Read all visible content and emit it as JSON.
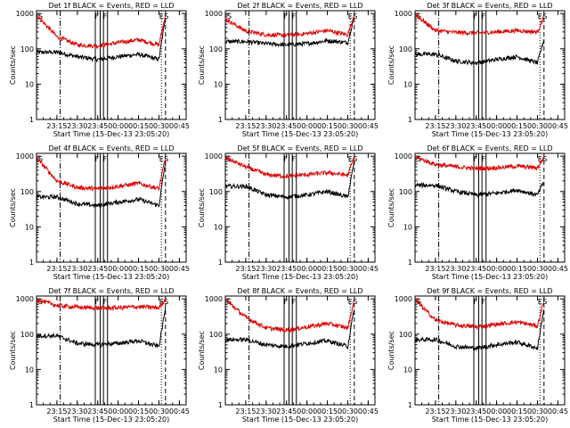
{
  "figure": {
    "xtick_labels": [
      "23:15",
      "23:30",
      "23:45",
      "00:00",
      "00:15",
      "00:30",
      "00:45"
    ],
    "x_tick_hours": [
      23.25,
      23.5,
      23.75,
      24.0,
      24.25,
      24.5,
      24.75
    ],
    "x_range_hours": [
      23.0,
      24.833
    ],
    "ytick_labels": [
      "1",
      "10",
      "100",
      "1000"
    ],
    "ylabel": "Counts/sec",
    "xlabel": "Start Time (15-Dec-13 23:05:20)",
    "ylog": true,
    "y_range": [
      1,
      1200
    ],
    "colors": {
      "events": "#000000",
      "lld": "#dd0000"
    },
    "marker_hours": {
      "dashdot": 23.29,
      "solid": [
        23.72,
        23.78,
        23.82,
        23.87
      ],
      "dotted": 24.53,
      "dashed": 24.58
    },
    "marker_labels": [
      {
        "text": "S",
        "hour": 23.05
      },
      {
        "text": "F",
        "hour": 23.74
      },
      {
        "text": "F",
        "hour": 23.84
      },
      {
        "text": "E",
        "hour": 24.53
      },
      {
        "text": "S",
        "hour": 24.59
      }
    ]
  },
  "chart_data": [
    {
      "type": "line",
      "title": "Det 1f BLACK = Events, RED = LLD",
      "series": [
        {
          "name": "Events",
          "color": "#000000",
          "x": [
            23.0,
            23.25,
            23.5,
            23.75,
            24.0,
            24.25,
            24.5,
            24.583
          ],
          "y": [
            null,
            80,
            60,
            50,
            60,
            70,
            50,
            900
          ]
        },
        {
          "name": "LLD",
          "color": "#dd0000",
          "x": [
            23.0,
            23.25,
            23.5,
            23.75,
            24.0,
            24.25,
            24.5,
            24.583
          ],
          "y": [
            900,
            220,
            130,
            120,
            150,
            180,
            130,
            1000
          ]
        }
      ]
    },
    {
      "type": "line",
      "title": "Det 2f BLACK = Events, RED = LLD",
      "series": [
        {
          "name": "Events",
          "color": "#000000",
          "x": [
            23.0,
            23.25,
            23.5,
            23.75,
            24.0,
            24.25,
            24.5,
            24.583
          ],
          "y": [
            null,
            160,
            140,
            130,
            140,
            170,
            150,
            900
          ]
        },
        {
          "name": "LLD",
          "color": "#dd0000",
          "x": [
            23.0,
            23.25,
            23.5,
            23.75,
            24.0,
            24.25,
            24.5,
            24.583
          ],
          "y": [
            700,
            320,
            250,
            240,
            270,
            330,
            250,
            1000
          ]
        }
      ]
    },
    {
      "type": "line",
      "title": "Det 3f BLACK = Events, RED = LLD",
      "series": [
        {
          "name": "Events",
          "color": "#000000",
          "x": [
            23.0,
            23.25,
            23.5,
            23.75,
            24.0,
            24.25,
            24.5,
            24.583
          ],
          "y": [
            null,
            70,
            45,
            40,
            50,
            60,
            40,
            200
          ]
        },
        {
          "name": "LLD",
          "color": "#dd0000",
          "x": [
            23.0,
            23.25,
            23.5,
            23.75,
            24.0,
            24.25,
            24.5,
            24.583
          ],
          "y": [
            950,
            330,
            290,
            280,
            300,
            330,
            300,
            900
          ]
        }
      ]
    },
    {
      "type": "line",
      "title": "Det 4f BLACK = Events, RED = LLD",
      "series": [
        {
          "name": "Events",
          "color": "#000000",
          "x": [
            23.0,
            23.25,
            23.5,
            23.75,
            24.0,
            24.25,
            24.5,
            24.583
          ],
          "y": [
            null,
            70,
            45,
            40,
            50,
            60,
            40,
            800
          ]
        },
        {
          "name": "LLD",
          "color": "#dd0000",
          "x": [
            23.0,
            23.25,
            23.5,
            23.75,
            24.0,
            24.25,
            24.5,
            24.583
          ],
          "y": [
            900,
            200,
            130,
            120,
            140,
            170,
            120,
            1000
          ]
        }
      ]
    },
    {
      "type": "line",
      "title": "Det 5f BLACK = Events, RED = LLD",
      "series": [
        {
          "name": "Events",
          "color": "#000000",
          "x": [
            23.0,
            23.25,
            23.5,
            23.75,
            24.0,
            24.25,
            24.5,
            24.583
          ],
          "y": [
            null,
            140,
            80,
            70,
            80,
            100,
            70,
            800
          ]
        },
        {
          "name": "LLD",
          "color": "#dd0000",
          "x": [
            23.0,
            23.25,
            23.5,
            23.75,
            24.0,
            24.25,
            24.5,
            24.583
          ],
          "y": [
            900,
            500,
            300,
            270,
            300,
            340,
            290,
            1000
          ]
        }
      ]
    },
    {
      "type": "line",
      "title": "Det 6f BLACK = Events, RED = LLD",
      "series": [
        {
          "name": "Events",
          "color": "#000000",
          "x": [
            23.0,
            23.25,
            23.5,
            23.75,
            24.0,
            24.25,
            24.5,
            24.583
          ],
          "y": [
            null,
            150,
            100,
            80,
            90,
            110,
            80,
            200
          ]
        },
        {
          "name": "LLD",
          "color": "#dd0000",
          "x": [
            23.0,
            23.25,
            23.5,
            23.75,
            24.0,
            24.25,
            24.5,
            24.583
          ],
          "y": [
            950,
            580,
            500,
            450,
            470,
            520,
            470,
            950
          ]
        }
      ]
    },
    {
      "type": "line",
      "title": "Det 7f BLACK = Events, RED = LLD",
      "series": [
        {
          "name": "Events",
          "color": "#000000",
          "x": [
            23.0,
            23.25,
            23.5,
            23.75,
            24.0,
            24.25,
            24.5,
            24.583
          ],
          "y": [
            null,
            90,
            55,
            50,
            55,
            65,
            45,
            600
          ]
        },
        {
          "name": "LLD",
          "color": "#dd0000",
          "x": [
            23.0,
            23.25,
            23.5,
            23.75,
            24.0,
            24.25,
            24.5,
            24.583
          ],
          "y": [
            950,
            650,
            580,
            550,
            560,
            600,
            560,
            1000
          ]
        }
      ]
    },
    {
      "type": "line",
      "title": "Det 8f BLACK = Events, RED = LLD",
      "series": [
        {
          "name": "Events",
          "color": "#000000",
          "x": [
            23.0,
            23.25,
            23.5,
            23.75,
            24.0,
            24.25,
            24.5,
            24.583
          ],
          "y": [
            null,
            70,
            50,
            45,
            55,
            65,
            45,
            600
          ]
        },
        {
          "name": "LLD",
          "color": "#dd0000",
          "x": [
            23.0,
            23.25,
            23.5,
            23.75,
            24.0,
            24.25,
            24.5,
            24.583
          ],
          "y": [
            950,
            300,
            150,
            130,
            160,
            200,
            150,
            1000
          ]
        }
      ]
    },
    {
      "type": "line",
      "title": "Det 9f BLACK = Events, RED = LLD",
      "series": [
        {
          "name": "Events",
          "color": "#000000",
          "x": [
            23.0,
            23.25,
            23.5,
            23.75,
            24.0,
            24.25,
            24.5,
            24.583
          ],
          "y": [
            null,
            70,
            45,
            40,
            50,
            60,
            40,
            600
          ]
        },
        {
          "name": "LLD",
          "color": "#dd0000",
          "x": [
            23.0,
            23.25,
            23.5,
            23.75,
            24.0,
            24.25,
            24.5,
            24.583
          ],
          "y": [
            950,
            250,
            180,
            160,
            190,
            220,
            170,
            1000
          ]
        }
      ]
    }
  ]
}
